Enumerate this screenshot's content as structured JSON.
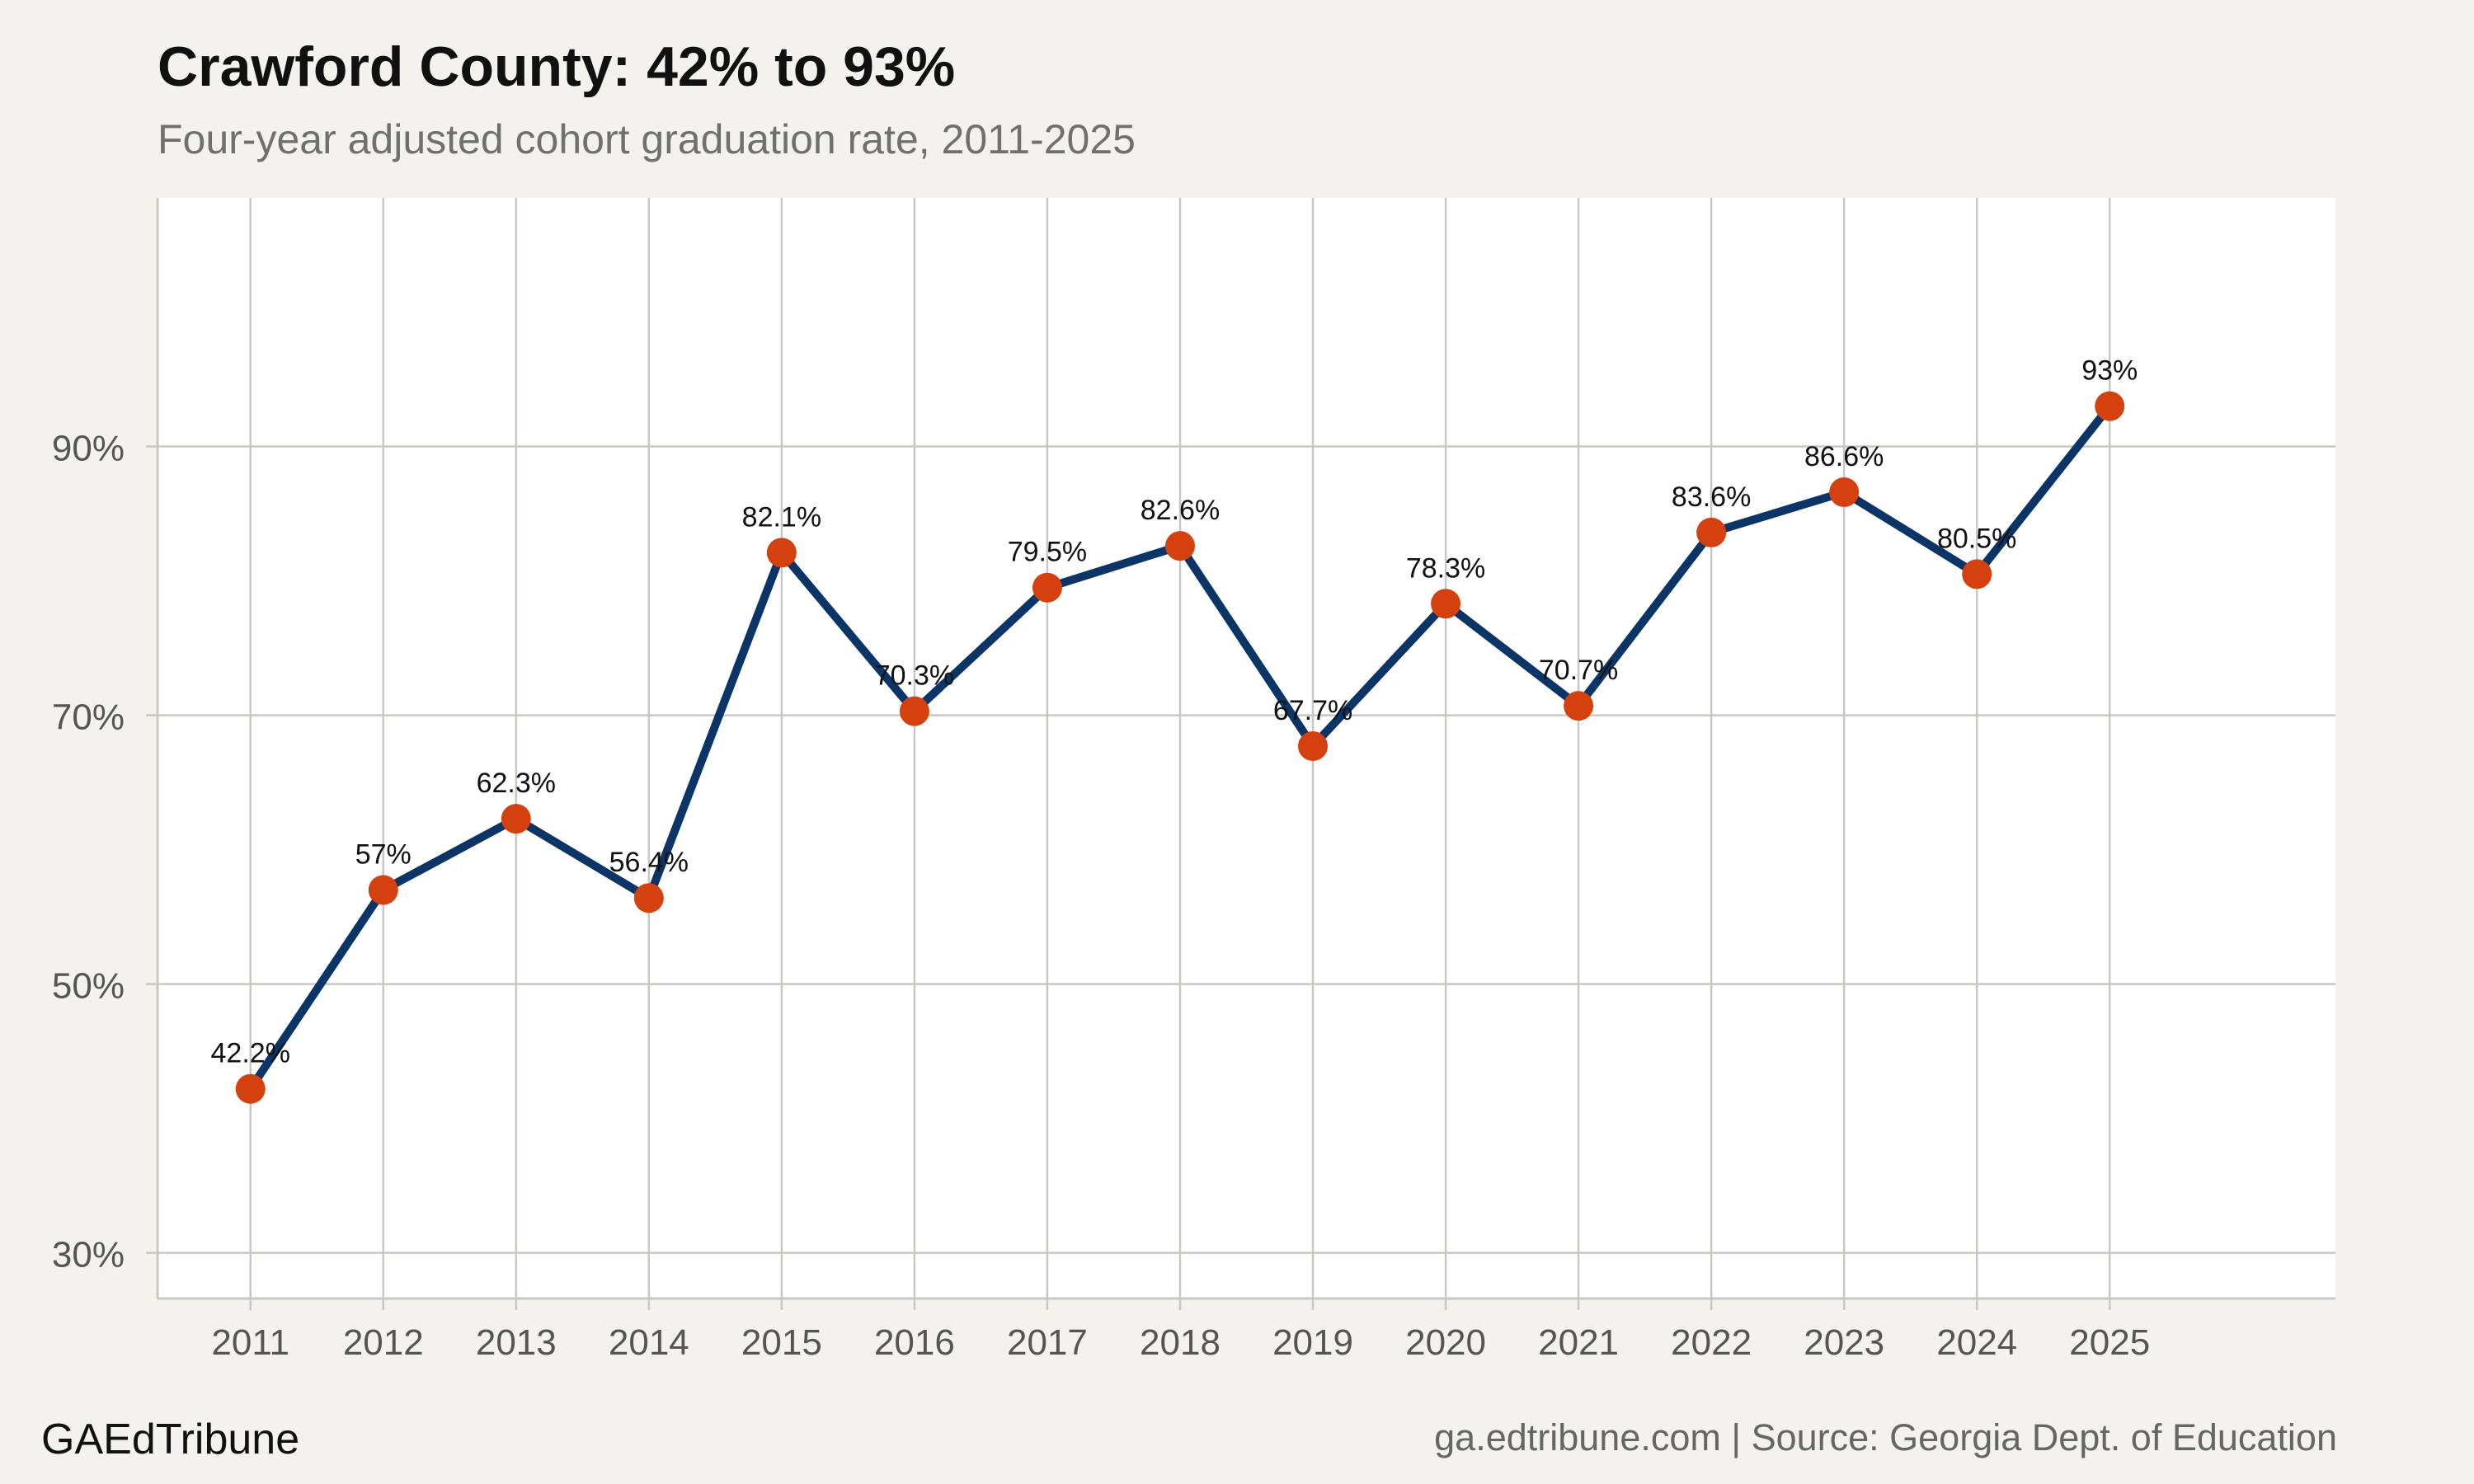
{
  "title": "Crawford County: 42% to 93%",
  "subtitle": "Four-year adjusted cohort graduation rate, 2011-2025",
  "footer": {
    "brand": "GAEdTribune",
    "source": "ga.edtribune.com | Source: Georgia Dept. of Education"
  },
  "colors": {
    "background": "#f4f2ee",
    "panel": "#ffffff",
    "line": "#0b3566",
    "point": "#d5400f",
    "grid": "#c9c7c1"
  },
  "chart_data": {
    "type": "line",
    "title": "Crawford County: 42% to 93%",
    "subtitle": "Four-year adjusted cohort graduation rate, 2011-2025",
    "xlabel": "",
    "ylabel": "",
    "x": [
      2011,
      2012,
      2013,
      2014,
      2015,
      2016,
      2017,
      2018,
      2019,
      2020,
      2021,
      2022,
      2023,
      2024,
      2025
    ],
    "x_tick_labels": [
      "2011",
      "2012",
      "2013",
      "2014",
      "2015",
      "2016",
      "2017",
      "2018",
      "2019",
      "2020",
      "2021",
      "2022",
      "2023",
      "2024",
      "2025"
    ],
    "series": [
      {
        "values": [
          42.2,
          57,
          62.3,
          56.4,
          82.1,
          70.3,
          79.5,
          82.6,
          67.7,
          78.3,
          70.7,
          83.6,
          86.6,
          80.5,
          93
        ],
        "labels": [
          "42.2%",
          "57%",
          "62.3%",
          "56.4%",
          "82.1%",
          "70.3%",
          "79.5%",
          "82.6%",
          "67.7%",
          "78.3%",
          "70.7%",
          "83.6%",
          "86.6%",
          "80.5%",
          "93%"
        ]
      }
    ],
    "y_ticks": [
      30,
      50,
      70,
      90
    ],
    "y_tick_labels": [
      "30%",
      "50%",
      "70%",
      "90%"
    ],
    "xlim": [
      2010.3,
      2026.7
    ],
    "ylim": [
      26.6,
      108.5
    ],
    "grid": true,
    "legend": "none"
  }
}
